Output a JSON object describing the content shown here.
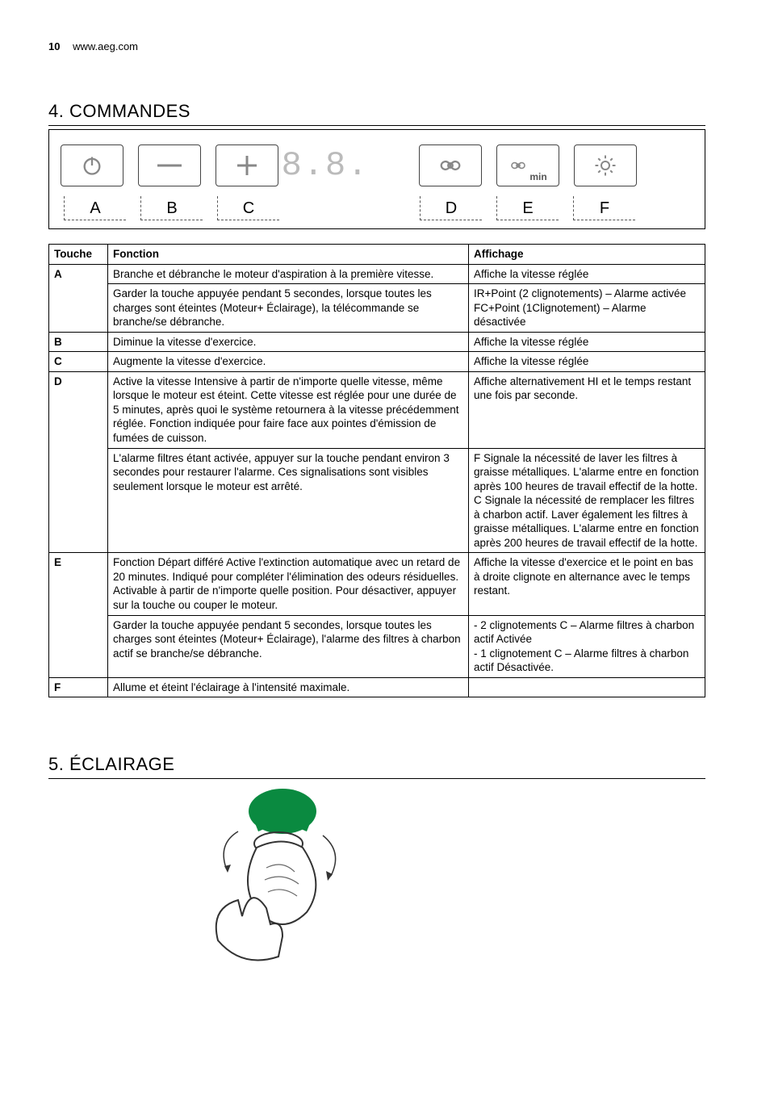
{
  "page_header": {
    "number": "10",
    "site": "www.aeg.com"
  },
  "sections": {
    "commandes": {
      "number": "4.",
      "title": "COMMANDES"
    },
    "eclairage": {
      "number": "5.",
      "title": "ÉCLAIRAGE"
    }
  },
  "panel": {
    "digits": "8.8.",
    "labels": {
      "a": "A",
      "b": "B",
      "c": "C",
      "d": "D",
      "e": "E",
      "f": "F"
    },
    "icons": {
      "power": "power-icon",
      "minus": "minus-icon",
      "plus": "plus-icon",
      "fan": "fan-icon",
      "fan_min": "fan-min-icon",
      "light": "light-icon",
      "min_suffix": "min"
    }
  },
  "table": {
    "headers": {
      "touche": "Touche",
      "fonction": "Fonction",
      "affichage": "Affichage"
    },
    "rows": [
      {
        "touche": "A",
        "fonction": "Branche et débranche le moteur d'aspiration à la première vitesse.",
        "affichage": "Affiche la vitesse réglée"
      },
      {
        "touche": "",
        "fonction": "Garder la touche appuyée pendant 5 secondes, lorsque toutes les charges sont éteintes (Moteur+ Éclairage), la télécommande se branche/se débranche.",
        "affichage": "IR+Point (2 clignotements) – Alarme activée\nFC+Point (1Clignotement) – Alarme désactivée"
      },
      {
        "touche": "B",
        "fonction": "Diminue la vitesse d'exercice.",
        "affichage": "Affiche la vitesse réglée"
      },
      {
        "touche": "C",
        "fonction": "Augmente la vitesse d'exercice.",
        "affichage": "Affiche la vitesse réglée"
      },
      {
        "touche": "D",
        "fonction": "Active la vitesse Intensive à partir de n'importe quelle vitesse, même lorsque le moteur est éteint. Cette vitesse est réglée pour une durée de 5 minutes, après quoi le système retournera à la vitesse précédemment réglée. Fonction indiquée pour faire face aux pointes d'émission de fumées de cuisson.",
        "affichage": "Affiche alternativement HI et le temps restant une fois par seconde."
      },
      {
        "touche": "",
        "fonction": "L'alarme filtres étant activée, appuyer sur la touche pendant environ 3 secondes pour restaurer l'alarme. Ces signalisations sont visibles seulement lorsque le moteur est arrêté.",
        "affichage": "F        Signale la nécessité de laver les filtres à graisse métalliques. L'alarme entre en fonction après 100 heures de travail effectif de la hotte.\nC        Signale la nécessité de remplacer les filtres à charbon actif. Laver également les filtres à graisse métalliques. L'alarme entre en fonction après 200 heures de travail effectif de la hotte."
      },
      {
        "touche": "E",
        "fonction": "Fonction Départ différé Active l'extinction automatique avec un retard de 20 minutes. Indiqué pour compléter l'élimination des odeurs résiduelles. Activable à partir de n'importe quelle position. Pour désactiver, appuyer sur la touche ou couper le moteur.",
        "affichage": "Affiche la vitesse d'exercice et le point en bas à droite clignote en alternance avec le temps restant."
      },
      {
        "touche": "",
        "fonction": "Garder la touche appuyée pendant 5 secondes, lorsque toutes les charges sont éteintes (Moteur+ Éclairage), l'alarme des filtres à charbon actif se branche/se débranche.",
        "affichage": "- 2 clignotements C – Alarme filtres à charbon actif Activée\n- 1 clignotement C – Alarme filtres à charbon actif Désactivée."
      },
      {
        "touche": "F",
        "fonction": "Allume et éteint l'éclairage à l'intensité maximale.",
        "affichage": ""
      }
    ]
  }
}
